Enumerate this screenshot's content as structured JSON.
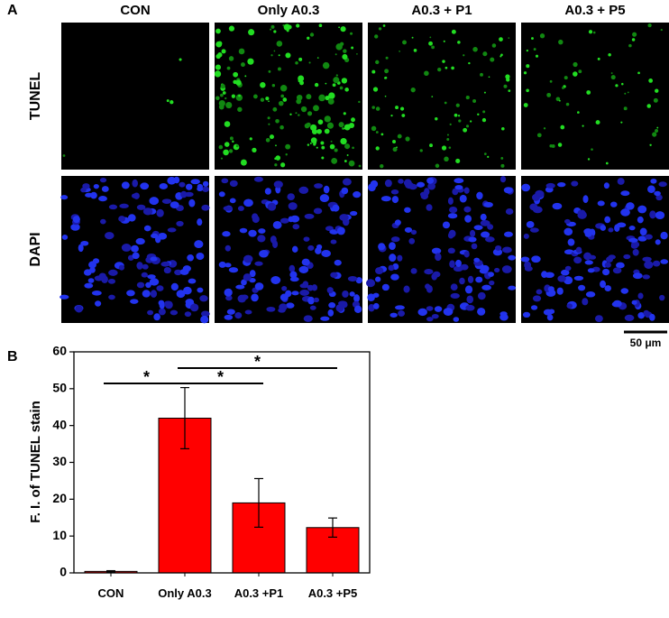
{
  "panel_a": {
    "label": "A",
    "columns": [
      "CON",
      "Only A0.3",
      "A0.3 + P1",
      "A0.3 + P5"
    ],
    "rows": [
      "TUNEL",
      "DAPI"
    ],
    "scale_bar": "50 μm"
  },
  "chart_data": {
    "type": "bar",
    "label": "B",
    "categories": [
      "CON",
      "Only A0.3",
      "A0.3 +P1",
      "A0.3 +P5"
    ],
    "values": [
      0.4,
      42,
      19,
      12.3
    ],
    "errors": [
      0.2,
      8.3,
      6.6,
      2.6
    ],
    "color": "#ff0000",
    "ylabel": "F. I. of TUNEL stain",
    "ylim": [
      0,
      60
    ],
    "yticks": [
      0,
      10,
      20,
      30,
      40,
      50,
      60
    ],
    "annotations": [
      {
        "text": "*",
        "from": 0,
        "to": 1
      },
      {
        "text": "*",
        "from": 1,
        "to": 2
      },
      {
        "text": "*",
        "from": 1,
        "to": 3
      }
    ]
  }
}
